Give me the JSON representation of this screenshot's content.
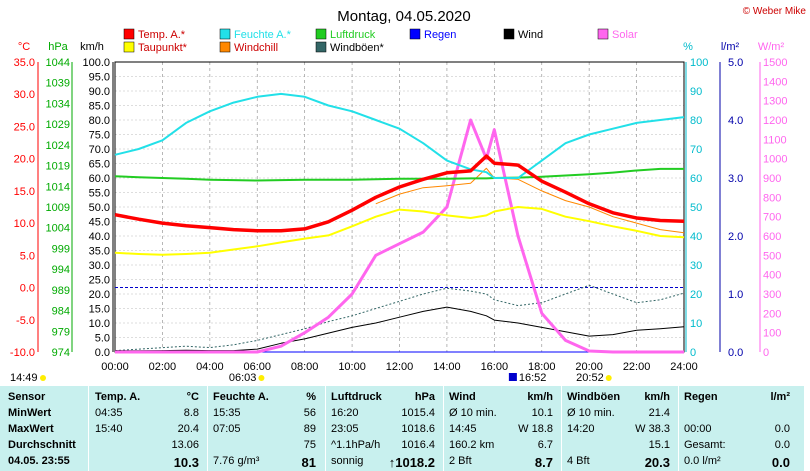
{
  "title": "Montag, 04.05.2020",
  "credit": "© Weber Mike",
  "legend": [
    {
      "label": "Temp. A.*",
      "color": "#ff0000"
    },
    {
      "label": "Feuchte A.*",
      "color": "#22e0e8"
    },
    {
      "label": "Luftdruck",
      "color": "#22cc22"
    },
    {
      "label": "Regen",
      "color": "#0000ff"
    },
    {
      "label": "Wind",
      "color": "#000000"
    },
    {
      "label": "Solar",
      "color": "#ff66ee"
    },
    {
      "label": "Taupunkt*",
      "color": "#ffff00"
    },
    {
      "label": "Windchill",
      "color": "#ff8800"
    },
    {
      "label": "Windböen*",
      "color": "#336666"
    }
  ],
  "axis_units": {
    "temp": "°C",
    "hpa": "hPa",
    "kmh": "km/h",
    "pct": "%",
    "rain": "l/m²",
    "solar": "W/m²"
  },
  "axis_ticks": {
    "temp": [
      "35.0",
      "30.0",
      "25.0",
      "20.0",
      "15.0",
      "10.0",
      "5.0",
      "0.0",
      "-5.0",
      "-10.0"
    ],
    "hpa": [
      "1044",
      "1039",
      "1034",
      "1029",
      "1024",
      "1019",
      "1014",
      "1009",
      "1004",
      "999",
      "994",
      "989",
      "984",
      "979",
      "974"
    ],
    "kmh": [
      "100.0",
      "95.0",
      "90.0",
      "85.0",
      "80.0",
      "75.0",
      "70.0",
      "65.0",
      "60.0",
      "55.0",
      "50.0",
      "45.0",
      "40.0",
      "35.0",
      "30.0",
      "25.0",
      "20.0",
      "15.0",
      "10.0",
      "5.0",
      "0.0"
    ],
    "pct": [
      "100",
      "90",
      "80",
      "70",
      "60",
      "50",
      "40",
      "30",
      "20",
      "10",
      "0"
    ],
    "rain": [
      "5.0",
      "4.0",
      "3.0",
      "2.0",
      "1.0",
      "0.0"
    ],
    "solar": [
      "1500",
      "1400",
      "1300",
      "1200",
      "1100",
      "1000",
      "900",
      "800",
      "700",
      "600",
      "500",
      "400",
      "300",
      "200",
      "100",
      "0"
    ],
    "time": [
      "00:00",
      "02:00",
      "04:00",
      "06:00",
      "08:00",
      "10:00",
      "12:00",
      "14:00",
      "16:00",
      "18:00",
      "20:00",
      "22:00",
      "24:00"
    ]
  },
  "time_markers": {
    "left": "14:49",
    "sunrise": "06:03",
    "transit": "16:52",
    "sunset": "20:52"
  },
  "chart_data": {
    "type": "line",
    "x": [
      "00:00",
      "01:00",
      "02:00",
      "03:00",
      "04:00",
      "05:00",
      "06:00",
      "07:00",
      "08:00",
      "09:00",
      "10:00",
      "11:00",
      "12:00",
      "13:00",
      "14:00",
      "15:00",
      "15:40",
      "16:00",
      "17:00",
      "18:00",
      "19:00",
      "20:00",
      "21:00",
      "22:00",
      "23:00",
      "24:00"
    ],
    "series": [
      {
        "name": "Temp. A.*",
        "unit": "°C",
        "color": "#ff0000",
        "values": [
          11.3,
          10.6,
          10.0,
          9.6,
          9.3,
          9.0,
          8.8,
          8.8,
          9.1,
          10.2,
          12.0,
          14.0,
          15.6,
          16.8,
          17.8,
          18.1,
          20.4,
          19.3,
          19.0,
          16.5,
          14.8,
          13.0,
          11.6,
          10.8,
          10.4,
          10.3
        ]
      },
      {
        "name": "Feuchte A.*",
        "unit": "%",
        "color": "#22e0e8",
        "values": [
          68,
          70,
          73,
          79,
          83,
          86,
          88,
          89,
          88,
          85,
          83,
          80,
          77,
          72,
          66,
          63,
          62,
          60,
          60,
          66,
          72,
          75,
          77,
          79,
          80,
          81
        ]
      },
      {
        "name": "Luftdruck",
        "unit": "hPa",
        "color": "#22cc22",
        "values": [
          1016.4,
          1016.2,
          1016.0,
          1015.8,
          1015.6,
          1015.5,
          1015.4,
          1015.5,
          1015.6,
          1015.6,
          1015.6,
          1015.7,
          1015.8,
          1015.8,
          1015.8,
          1015.9,
          1015.9,
          1016.0,
          1016.1,
          1016.3,
          1016.6,
          1016.9,
          1017.3,
          1017.8,
          1018.2,
          1018.2
        ]
      },
      {
        "name": "Taupunkt*",
        "unit": "°C",
        "color": "#ffff00",
        "values": [
          5.4,
          5.2,
          5.1,
          5.2,
          5.4,
          5.9,
          6.4,
          7.0,
          7.6,
          8.1,
          9.5,
          11.0,
          12.1,
          11.8,
          11.2,
          10.8,
          11.2,
          11.8,
          12.5,
          12.2,
          11.0,
          10.3,
          9.5,
          8.8,
          8.0,
          7.8
        ]
      },
      {
        "name": "Windchill",
        "unit": "°C",
        "color": "#ff8800",
        "values": [
          null,
          null,
          null,
          null,
          null,
          null,
          null,
          null,
          null,
          null,
          null,
          13.0,
          14.5,
          15.5,
          15.8,
          16.2,
          18.5,
          17.0,
          16.8,
          15.0,
          13.5,
          12.5,
          11.0,
          10.0,
          9.0,
          8.5
        ]
      },
      {
        "name": "Wind",
        "unit": "km/h",
        "color": "#000000",
        "values": [
          0.5,
          0.4,
          0.5,
          0.6,
          0.5,
          0.5,
          1.0,
          3.0,
          4.5,
          6.5,
          8.5,
          10.0,
          12.0,
          14.0,
          15.5,
          14.0,
          12.5,
          11.0,
          10.0,
          8.5,
          7.0,
          5.5,
          6.0,
          7.5,
          8.0,
          8.7
        ]
      },
      {
        "name": "Windböen*",
        "unit": "km/h",
        "color": "#336666",
        "values": [
          0.5,
          1.0,
          1.5,
          2.0,
          1.5,
          2.5,
          4.0,
          6.0,
          8.0,
          10.5,
          12.5,
          15.0,
          17.5,
          20.0,
          22.0,
          21.0,
          20.0,
          18.0,
          16.0,
          17.0,
          20.0,
          23.0,
          20.0,
          17.0,
          18.0,
          20.3
        ]
      },
      {
        "name": "Solar",
        "unit": "W/m²",
        "color": "#ff66ee",
        "values": [
          0,
          0,
          0,
          0,
          0,
          0,
          0,
          30,
          100,
          180,
          300,
          500,
          560,
          620,
          750,
          1200,
          1000,
          1150,
          600,
          200,
          60,
          5,
          0,
          0,
          0,
          0
        ]
      },
      {
        "name": "Regen",
        "unit": "l/m²",
        "color": "#0000ff",
        "values": [
          0,
          0,
          0,
          0,
          0,
          0,
          0,
          0,
          0,
          0,
          0,
          0,
          0,
          0,
          0,
          0,
          0,
          0,
          0,
          0,
          0,
          0,
          0,
          0,
          0,
          0
        ]
      }
    ],
    "axes": {
      "temp": [
        -10,
        35
      ],
      "hpa": [
        974,
        1044
      ],
      "kmh": [
        0,
        100
      ],
      "pct": [
        0,
        100
      ],
      "rain": [
        0,
        5
      ],
      "solar": [
        0,
        1500
      ]
    },
    "grid": true
  },
  "stats": {
    "headers": {
      "sensor": "Sensor",
      "temp": "Temp. A.",
      "temp_unit": "°C",
      "hum": "Feuchte A.",
      "hum_unit": "%",
      "press": "Luftdruck",
      "press_unit": "hPa",
      "wind": "Wind",
      "wind_unit": "km/h",
      "gust": "Windböen",
      "gust_unit": "km/h",
      "rain": "Regen",
      "rain_unit": "l/m²"
    },
    "rows": [
      {
        "label": "MinWert",
        "temp_t": "04:35",
        "temp_v": "8.8",
        "hum_t": "15:35",
        "hum_v": "56",
        "press_t": "16:20",
        "press_v": "1015.4",
        "wind_t": "Ø 10 min.",
        "wind_v": "10.1",
        "gust_t": "Ø 10 min.",
        "gust_v": "21.4",
        "rain_t": "",
        "rain_v": ""
      },
      {
        "label": "MaxWert",
        "temp_t": "15:40",
        "temp_v": "20.4",
        "hum_t": "07:05",
        "hum_v": "89",
        "press_t": "23:05",
        "press_v": "1018.6",
        "wind_t": "14:45",
        "wind_v": "W 18.8",
        "gust_t": "14:20",
        "gust_v": "W 38.3",
        "rain_t": "00:00",
        "rain_v": "0.0"
      },
      {
        "label": "Durchschnitt",
        "temp_t": "",
        "temp_v": "13.06",
        "hum_t": "",
        "hum_v": "75",
        "press_t": "^1.1hPa/h",
        "press_v": "1016.4",
        "wind_t": "160.2 km",
        "wind_v": "6.7",
        "gust_t": "",
        "gust_v": "15.1",
        "rain_t": "Gesamt:",
        "rain_v": "0.0"
      },
      {
        "label": "04.05. 23:55",
        "temp_t": "",
        "temp_v": "10.3",
        "hum_t": "7.76 g/m³",
        "hum_v": "81",
        "press_t": "sonnig",
        "press_v": "1018.2",
        "wind_t": "2 Bft",
        "wind_v": "8.7",
        "gust_t": "4 Bft",
        "gust_v": "20.3",
        "rain_t": "0.0 l/m²",
        "rain_v": "0.0"
      }
    ]
  }
}
